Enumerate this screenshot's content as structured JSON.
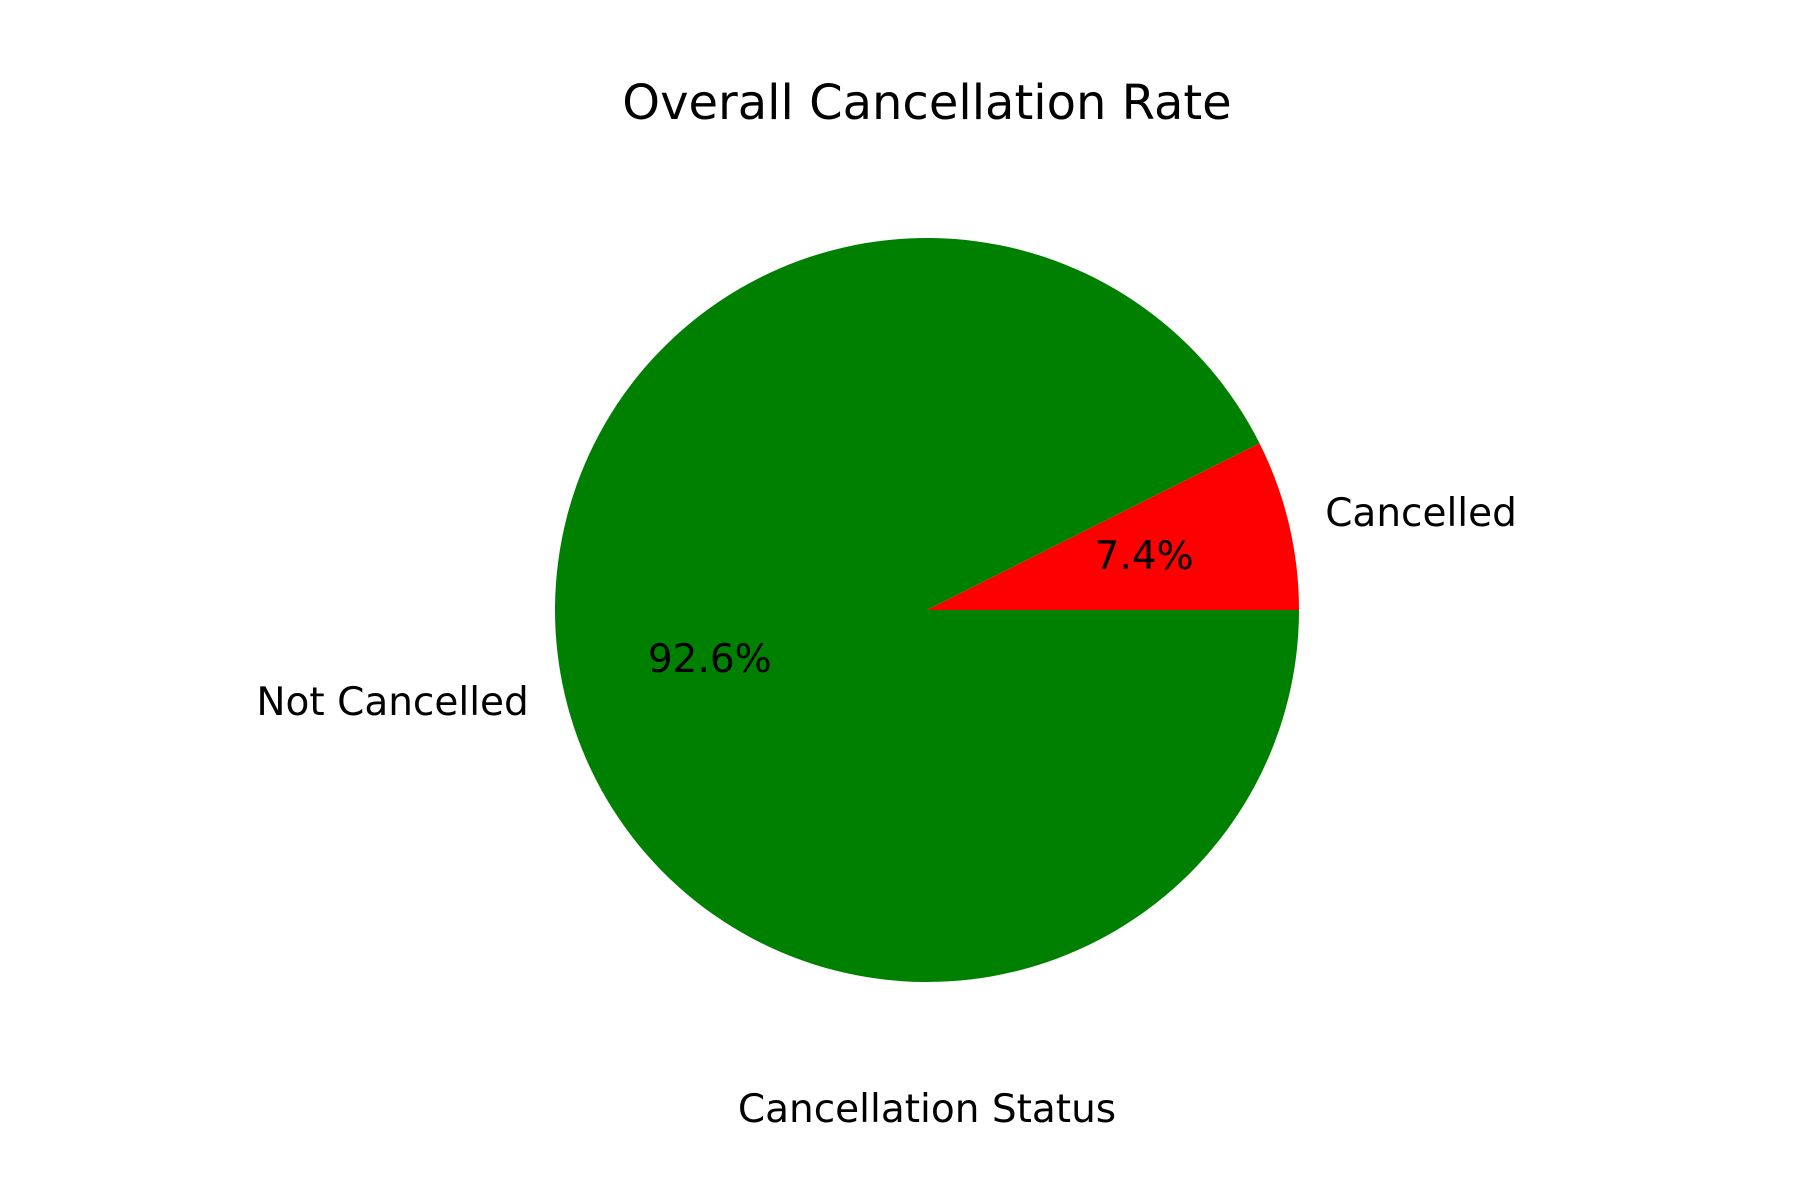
{
  "chart_data": {
    "type": "pie",
    "title": "Overall Cancellation Rate",
    "xlabel": "Cancellation Status",
    "ylabel": "",
    "start_angle_deg": 0,
    "direction": "counterclockwise",
    "slices": [
      {
        "label": "Cancelled",
        "value": 7.4,
        "pct_label": "7.4%",
        "color": "#ff0000"
      },
      {
        "label": "Not Cancelled",
        "value": 92.6,
        "pct_label": "92.6%",
        "color": "#008000"
      }
    ]
  }
}
